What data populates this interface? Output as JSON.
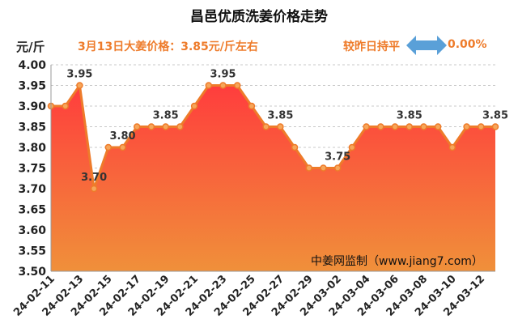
{
  "header": {
    "title": "昌邑优质洗姜价格走势",
    "unit": "元/斤",
    "price_info": "3月13日大姜价格：3.85元/斤左右",
    "compare_label": "较昨日持平",
    "compare_value": "0.00%",
    "arrow_icon": "left-right-arrow-icon"
  },
  "watermark": "中姜网监制（www.jiang7.com）",
  "colors": {
    "line": "#ee7b2a",
    "area_top": "#ff3d3d",
    "area_bottom": "#f0903a",
    "arrow": "#5aa0d8",
    "label": "#333333"
  },
  "chart_data": {
    "type": "area",
    "ylim": [
      3.5,
      4.0
    ],
    "yticks": [
      "3.50",
      "3.55",
      "3.60",
      "3.65",
      "3.70",
      "3.75",
      "3.80",
      "3.85",
      "3.90",
      "3.95",
      "4.00"
    ],
    "grid": true,
    "x": [
      "24-02-11",
      "24-02-12",
      "24-02-13",
      "24-02-14",
      "24-02-15",
      "24-02-16",
      "24-02-17",
      "24-02-18",
      "24-02-19",
      "24-02-20",
      "24-02-21",
      "24-02-22",
      "24-02-23",
      "24-02-24",
      "24-02-25",
      "24-02-26",
      "24-02-27",
      "24-02-28",
      "24-02-29",
      "24-03-01",
      "24-03-02",
      "24-03-03",
      "24-03-04",
      "24-03-05",
      "24-03-06",
      "24-03-07",
      "24-03-08",
      "24-03-09",
      "24-03-10",
      "24-03-11",
      "24-03-12",
      "24-03-13"
    ],
    "xtick_labels": [
      "24-02-11",
      "24-02-13",
      "24-02-15",
      "24-02-17",
      "24-02-19",
      "24-02-21",
      "24-02-23",
      "24-02-25",
      "24-02-27",
      "24-02-29",
      "24-03-02",
      "24-03-04",
      "24-03-06",
      "24-03-08",
      "24-03-10",
      "24-03-12"
    ],
    "values": [
      3.9,
      3.9,
      3.95,
      3.7,
      3.8,
      3.8,
      3.85,
      3.85,
      3.85,
      3.85,
      3.9,
      3.95,
      3.95,
      3.95,
      3.9,
      3.85,
      3.85,
      3.8,
      3.75,
      3.75,
      3.75,
      3.8,
      3.85,
      3.85,
      3.85,
      3.85,
      3.85,
      3.85,
      3.8,
      3.85,
      3.85,
      3.85
    ],
    "data_labels": [
      {
        "index": 2,
        "text": "3.95"
      },
      {
        "index": 3,
        "text": "3.70"
      },
      {
        "index": 5,
        "text": "3.80"
      },
      {
        "index": 8,
        "text": "3.85"
      },
      {
        "index": 12,
        "text": "3.95"
      },
      {
        "index": 16,
        "text": "3.85"
      },
      {
        "index": 20,
        "text": "3.75"
      },
      {
        "index": 25,
        "text": "3.85"
      },
      {
        "index": 31,
        "text": "3.85"
      }
    ]
  }
}
